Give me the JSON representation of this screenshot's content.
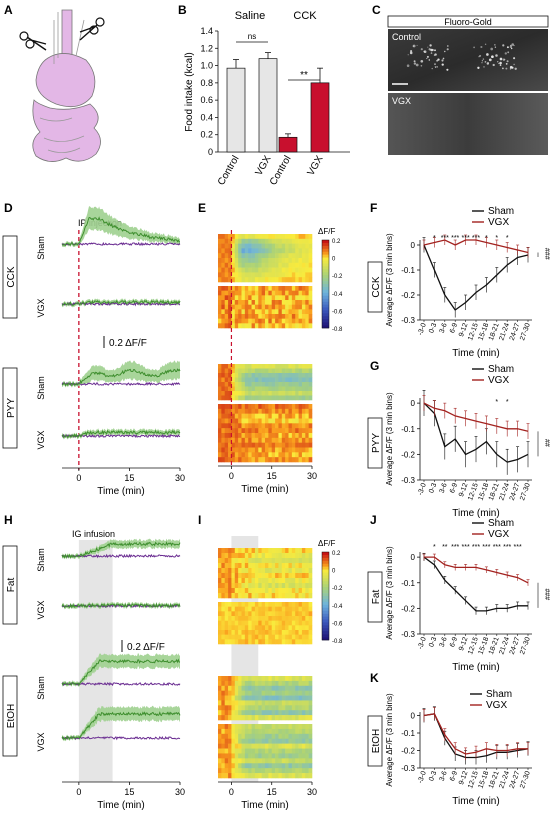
{
  "panels": [
    "A",
    "B",
    "C",
    "D",
    "E",
    "F",
    "G",
    "H",
    "I",
    "J",
    "K"
  ],
  "bar_chart": {
    "ylabel": "Food intake (kcal)",
    "yticks": [
      "0",
      "0.2",
      "0.4",
      "0.6",
      "0.8",
      "1.0",
      "1.2",
      "1.4"
    ],
    "group_saline": "Saline",
    "group_cck": "CCK",
    "sig_saline": "ns",
    "sig_cck": "**",
    "xlabels": [
      "Control",
      "VGX",
      "Control",
      "VGX"
    ]
  },
  "fluoro": {
    "title": "Fluoro-Gold",
    "control": "Control",
    "vgx": "VGX"
  },
  "traces": {
    "ip_injection": "IP injection",
    "ig_infusion": "IG infusion",
    "scale_label": "0.2 ΔF/F",
    "sham": "Sham",
    "vgx": "VGX",
    "cck": "CCK",
    "pyy": "PYY",
    "fat": "Fat",
    "etoh": "EtOH",
    "time_label": "Time (min)",
    "xticks": [
      "0",
      "15",
      "30"
    ]
  },
  "heatmap": {
    "label": "ΔF/F",
    "ticks": [
      "0.2",
      "0",
      "-0.2",
      "-0.4",
      "-0.6",
      "-0.8"
    ]
  },
  "line_common": {
    "ylabel": "Average ΔF/F (3 min bins)",
    "xlabel": "Time (min)",
    "yticks": [
      "0",
      "-0.1",
      "-0.2",
      "-0.3"
    ],
    "xbins": [
      "-3-0",
      "0-3",
      "3-6",
      "6-9",
      "9-12",
      "12-15",
      "15-18",
      "18-21",
      "21-24",
      "24-27",
      "27-30"
    ],
    "legend_sham": "Sham",
    "legend_vgx": "VGX"
  },
  "chart_data": [
    {
      "type": "bar",
      "panel": "B",
      "categories": [
        "Control",
        "VGX",
        "Control",
        "VGX"
      ],
      "groups": [
        "Saline",
        "Saline",
        "CCK",
        "CCK"
      ],
      "values": [
        0.97,
        1.08,
        0.17,
        0.8
      ],
      "errors": [
        0.1,
        0.07,
        0.04,
        0.17
      ],
      "ylabel": "Food intake (kcal)",
      "ylim": [
        0,
        1.4
      ]
    },
    {
      "type": "line",
      "panel": "F",
      "label": "CCK",
      "x": [
        "-3-0",
        "0-3",
        "3-6",
        "6-9",
        "9-12",
        "12-15",
        "15-18",
        "18-21",
        "21-24",
        "24-27",
        "27-30"
      ],
      "series": [
        {
          "name": "Sham",
          "values": [
            0,
            -0.1,
            -0.2,
            -0.26,
            -0.23,
            -0.19,
            -0.16,
            -0.12,
            -0.08,
            -0.05,
            -0.04
          ]
        },
        {
          "name": "VGX",
          "values": [
            0,
            0.01,
            0.02,
            0.0,
            0.02,
            0.02,
            0.01,
            0.0,
            -0.01,
            -0.02,
            -0.03
          ]
        }
      ],
      "ylim": [
        -0.3,
        0.05
      ],
      "sig": [
        "",
        "*",
        "***",
        "***",
        "***",
        "***",
        "*",
        "*",
        "*",
        "",
        ""
      ],
      "side_sig": "###"
    },
    {
      "type": "line",
      "panel": "G",
      "label": "PYY",
      "x": [
        "-3-0",
        "0-3",
        "3-6",
        "6-9",
        "9-12",
        "12-15",
        "15-18",
        "18-21",
        "21-24",
        "24-27",
        "27-30"
      ],
      "series": [
        {
          "name": "Sham",
          "values": [
            0,
            -0.04,
            -0.17,
            -0.14,
            -0.2,
            -0.18,
            -0.15,
            -0.2,
            -0.23,
            -0.22,
            -0.2
          ]
        },
        {
          "name": "VGX",
          "values": [
            0,
            -0.02,
            -0.03,
            -0.05,
            -0.06,
            -0.07,
            -0.08,
            -0.09,
            -0.1,
            -0.1,
            -0.11
          ]
        }
      ],
      "ylim": [
        -0.3,
        0.05
      ],
      "sig": [
        "",
        "",
        "",
        "",
        "",
        "",
        "",
        "*",
        "*",
        "",
        ""
      ],
      "side_sig": "##"
    },
    {
      "type": "line",
      "panel": "J",
      "label": "Fat",
      "x": [
        "-3-0",
        "0-3",
        "3-6",
        "6-9",
        "9-12",
        "12-15",
        "15-18",
        "18-21",
        "21-24",
        "24-27",
        "27-30"
      ],
      "series": [
        {
          "name": "Sham",
          "values": [
            0,
            -0.03,
            -0.09,
            -0.13,
            -0.17,
            -0.21,
            -0.21,
            -0.2,
            -0.2,
            -0.19,
            -0.19
          ]
        },
        {
          "name": "VGX",
          "values": [
            0,
            0.0,
            -0.03,
            -0.04,
            -0.04,
            -0.04,
            -0.05,
            -0.06,
            -0.07,
            -0.08,
            -0.1
          ]
        }
      ],
      "ylim": [
        -0.3,
        0.05
      ],
      "sig": [
        "",
        "*",
        "**",
        "***",
        "***",
        "***",
        "***",
        "***",
        "***",
        "***",
        ""
      ],
      "side_sig": "###"
    },
    {
      "type": "line",
      "panel": "K",
      "label": "EtOH",
      "x": [
        "-3-0",
        "0-3",
        "3-6",
        "6-9",
        "9-12",
        "12-15",
        "15-18",
        "18-21",
        "21-24",
        "24-27",
        "27-30"
      ],
      "series": [
        {
          "name": "Sham",
          "values": [
            0,
            0.01,
            -0.13,
            -0.22,
            -0.24,
            -0.24,
            -0.23,
            -0.21,
            -0.21,
            -0.2,
            -0.19
          ]
        },
        {
          "name": "VGX",
          "values": [
            0,
            0.01,
            -0.11,
            -0.19,
            -0.22,
            -0.21,
            -0.19,
            -0.2,
            -0.2,
            -0.19,
            -0.19
          ]
        }
      ],
      "ylim": [
        -0.3,
        0.05
      ],
      "sig": [
        "",
        "",
        "",
        "",
        "",
        "",
        "",
        "",
        "",
        "",
        ""
      ],
      "side_sig": ""
    }
  ],
  "colors": {
    "green": "#3f8f2f",
    "green_fill": "#9fd08f",
    "purple": "#6a2c91",
    "red_dash": "#c8102e",
    "bar_gray": "#e6e6e6",
    "bar_red": "#c8102e",
    "line_sham": "#111111",
    "line_vgx": "#a3221f",
    "stomach": "#e3b7e6"
  }
}
